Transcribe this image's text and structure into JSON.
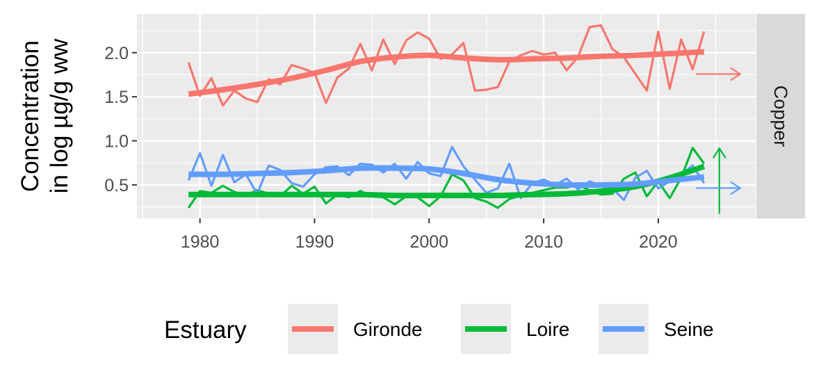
{
  "chart_data": {
    "type": "line",
    "ylabel_lines": [
      "Concentration",
      "in log µg/g ww"
    ],
    "xlabel": "",
    "facet_label": "Copper",
    "xlim": [
      1974.5,
      2028.5
    ],
    "ylim": [
      0.12,
      2.44
    ],
    "x_ticks": [
      1980,
      1990,
      2000,
      2010,
      2020
    ],
    "y_ticks": [
      0.5,
      1.0,
      1.5,
      2.0
    ],
    "y_tick_labels": [
      "0.5",
      "1.0",
      "1.5",
      "2.0"
    ],
    "grid": true,
    "legend": {
      "title": "Estuary",
      "position": "bottom",
      "entries": [
        "Gironde",
        "Loire",
        "Seine"
      ]
    },
    "series": [
      {
        "name": "Gironde",
        "color": "#F8766D",
        "x": [
          1979,
          1980,
          1981,
          1982,
          1983,
          1984,
          1985,
          1986,
          1987,
          1988,
          1989,
          1990,
          1991,
          1992,
          1993,
          1994,
          1995,
          1996,
          1997,
          1998,
          1999,
          2000,
          2001,
          2002,
          2003,
          2004,
          2005,
          2006,
          2007,
          2008,
          2009,
          2010,
          2011,
          2012,
          2013,
          2014,
          2015,
          2016,
          2017,
          2018,
          2019,
          2020,
          2021,
          2022,
          2023,
          2024
        ],
        "values": [
          1.89,
          1.51,
          1.71,
          1.4,
          1.57,
          1.48,
          1.44,
          1.7,
          1.64,
          1.86,
          1.82,
          1.77,
          1.43,
          1.72,
          1.82,
          2.1,
          1.8,
          2.15,
          1.87,
          2.14,
          2.23,
          2.16,
          1.93,
          1.98,
          2.11,
          1.57,
          1.58,
          1.61,
          1.9,
          1.97,
          2.02,
          1.98,
          2.0,
          1.8,
          1.95,
          2.29,
          2.31,
          2.04,
          1.95,
          1.76,
          1.57,
          2.24,
          1.59,
          2.15,
          1.81,
          2.24
        ],
        "trend_x": [
          1979,
          1982,
          1985,
          1988,
          1991,
          1994,
          1997,
          2000,
          2003,
          2006,
          2009,
          2012,
          2015,
          2018,
          2021,
          2024
        ],
        "trend_values": [
          1.53,
          1.58,
          1.64,
          1.71,
          1.8,
          1.9,
          1.95,
          1.97,
          1.94,
          1.92,
          1.93,
          1.94,
          1.96,
          1.97,
          1.99,
          2.01
        ],
        "trend_arrow": "right"
      },
      {
        "name": "Loire",
        "color": "#00BA38",
        "x": [
          1979,
          1980,
          1981,
          1982,
          1983,
          1984,
          1985,
          1986,
          1987,
          1988,
          1989,
          1990,
          1991,
          1992,
          1993,
          1994,
          1995,
          1996,
          1997,
          1998,
          1999,
          2000,
          2001,
          2002,
          2003,
          2004,
          2005,
          2006,
          2007,
          2008,
          2009,
          2010,
          2011,
          2012,
          2013,
          2014,
          2015,
          2016,
          2017,
          2018,
          2019,
          2020,
          2021,
          2022,
          2023,
          2024
        ],
        "values": [
          0.24,
          0.43,
          0.41,
          0.49,
          0.42,
          0.38,
          0.44,
          0.4,
          0.37,
          0.49,
          0.4,
          0.48,
          0.29,
          0.39,
          0.36,
          0.43,
          0.37,
          0.36,
          0.28,
          0.37,
          0.36,
          0.26,
          0.37,
          0.62,
          0.55,
          0.35,
          0.31,
          0.24,
          0.34,
          0.38,
          0.41,
          0.44,
          0.47,
          0.47,
          0.5,
          0.44,
          0.39,
          0.4,
          0.57,
          0.64,
          0.37,
          0.54,
          0.35,
          0.58,
          0.92,
          0.74
        ],
        "trend_x": [
          1979,
          1982,
          1985,
          1988,
          1991,
          1994,
          1997,
          2000,
          2003,
          2006,
          2009,
          2012,
          2015,
          2018,
          2021,
          2024
        ],
        "trend_values": [
          0.39,
          0.39,
          0.39,
          0.39,
          0.39,
          0.39,
          0.38,
          0.38,
          0.38,
          0.38,
          0.39,
          0.4,
          0.43,
          0.48,
          0.58,
          0.71
        ],
        "trend_arrow": "up"
      },
      {
        "name": "Seine",
        "color": "#619CFF",
        "x": [
          1979,
          1980,
          1981,
          1982,
          1983,
          1984,
          1985,
          1986,
          1987,
          1988,
          1989,
          1990,
          1991,
          1992,
          1993,
          1994,
          1995,
          1996,
          1997,
          1998,
          1999,
          2000,
          2001,
          2002,
          2003,
          2004,
          2005,
          2006,
          2007,
          2008,
          2009,
          2010,
          2011,
          2012,
          2013,
          2014,
          2015,
          2016,
          2017,
          2018,
          2019,
          2020,
          2021,
          2022,
          2023,
          2024
        ],
        "values": [
          0.55,
          0.86,
          0.49,
          0.84,
          0.53,
          0.62,
          0.4,
          0.72,
          0.67,
          0.52,
          0.48,
          0.62,
          0.7,
          0.71,
          0.61,
          0.74,
          0.73,
          0.64,
          0.74,
          0.57,
          0.76,
          0.63,
          0.6,
          0.93,
          0.71,
          0.56,
          0.41,
          0.46,
          0.74,
          0.35,
          0.52,
          0.56,
          0.5,
          0.57,
          0.45,
          0.54,
          0.49,
          0.46,
          0.33,
          0.58,
          0.66,
          0.46,
          0.54,
          0.62,
          0.72,
          0.52
        ],
        "trend_x": [
          1979,
          1982,
          1985,
          1988,
          1991,
          1994,
          1997,
          2000,
          2003,
          2006,
          2009,
          2012,
          2015,
          2018,
          2021,
          2024
        ],
        "trend_values": [
          0.62,
          0.62,
          0.63,
          0.64,
          0.66,
          0.69,
          0.69,
          0.68,
          0.63,
          0.56,
          0.52,
          0.5,
          0.5,
          0.51,
          0.55,
          0.59
        ],
        "trend_arrow": "right"
      }
    ]
  }
}
